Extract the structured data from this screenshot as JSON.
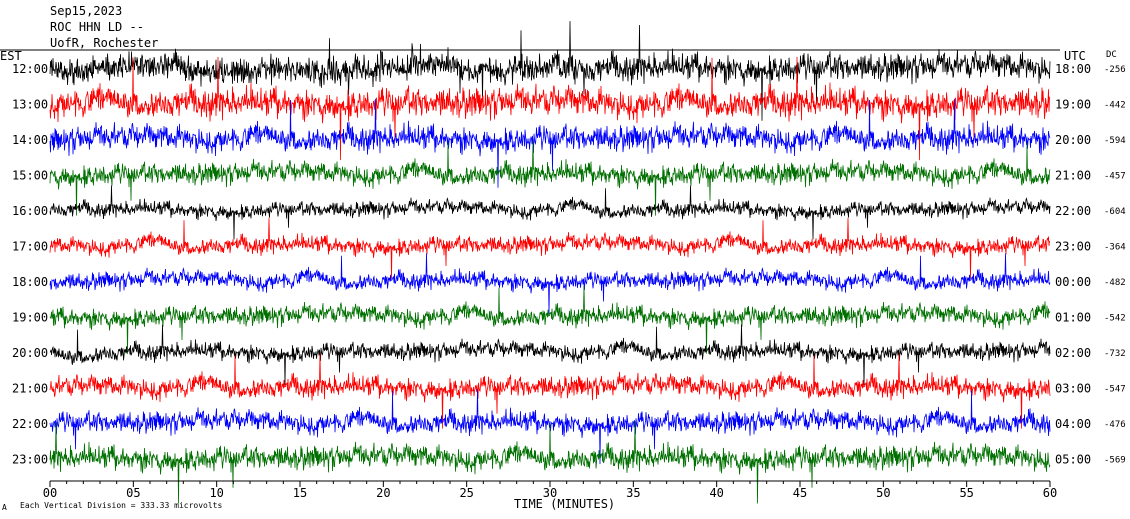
{
  "header": {
    "date": "Sep15,2023",
    "station": "ROC HHN LD --",
    "place": "UofR, Rochester"
  },
  "labels": {
    "left_zone": "EST",
    "right_zone": "UTC",
    "dc_header": "DC",
    "x_title": "TIME (MINUTES)",
    "footer": "Each Vertical Division =  333.33 microvolts",
    "corner_mark": "A"
  },
  "colors": {
    "cycle": [
      "#000000",
      "#ff0000",
      "#0000ff",
      "#007000"
    ],
    "names": [
      "black",
      "red",
      "blue",
      "green"
    ]
  },
  "chart_data": {
    "type": "line",
    "title": "",
    "x_axis": {
      "title": "TIME (MINUTES)",
      "range": [
        0,
        60
      ],
      "ticks": [
        "00",
        "05",
        "10",
        "15",
        "20",
        "25",
        "30",
        "35",
        "40",
        "45",
        "50",
        "55",
        "60"
      ]
    },
    "rows": [
      {
        "est": "12:00",
        "utc": "18:00",
        "dc": "-256",
        "color": "black",
        "amplitude_divisions": 1.3
      },
      {
        "est": "13:00",
        "utc": "19:00",
        "dc": "-442",
        "color": "red",
        "amplitude_divisions": 1.4
      },
      {
        "est": "14:00",
        "utc": "20:00",
        "dc": "-594",
        "color": "blue",
        "amplitude_divisions": 1.2
      },
      {
        "est": "15:00",
        "utc": "21:00",
        "dc": "-457",
        "color": "green",
        "amplitude_divisions": 1.0
      },
      {
        "est": "16:00",
        "utc": "22:00",
        "dc": "-604",
        "color": "black",
        "amplitude_divisions": 0.7
      },
      {
        "est": "17:00",
        "utc": "23:00",
        "dc": "-364",
        "color": "red",
        "amplitude_divisions": 0.8
      },
      {
        "est": "18:00",
        "utc": "00:00",
        "dc": "-482",
        "color": "blue",
        "amplitude_divisions": 0.8
      },
      {
        "est": "19:00",
        "utc": "01:00",
        "dc": "-542",
        "color": "green",
        "amplitude_divisions": 0.9
      },
      {
        "est": "20:00",
        "utc": "02:00",
        "dc": "-732",
        "color": "black",
        "amplitude_divisions": 0.8
      },
      {
        "est": "21:00",
        "utc": "03:00",
        "dc": "-547",
        "color": "red",
        "amplitude_divisions": 1.0
      },
      {
        "est": "22:00",
        "utc": "04:00",
        "dc": "-476",
        "color": "blue",
        "amplitude_divisions": 1.0
      },
      {
        "est": "23:00",
        "utc": "05:00",
        "dc": "-569",
        "color": "green",
        "amplitude_divisions": 1.1
      }
    ],
    "vertical_division_microvolts": 333.33,
    "grid": false,
    "legend": "none"
  }
}
